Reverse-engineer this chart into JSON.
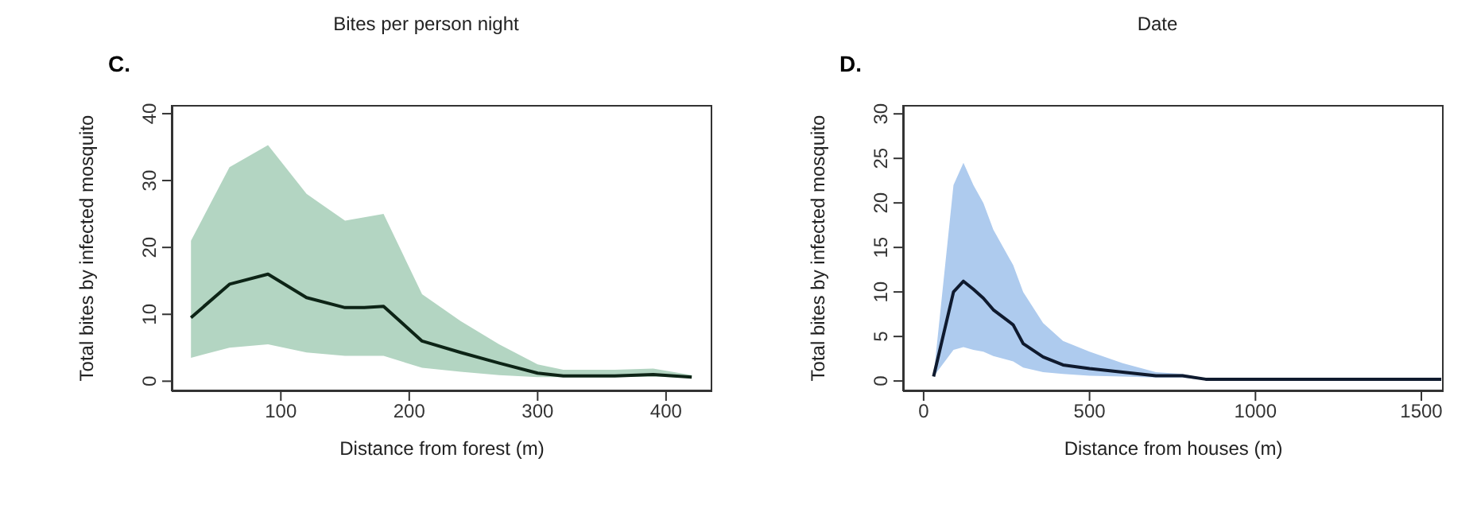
{
  "chart_data": [
    {
      "type": "line",
      "title": "C.",
      "annotations": [
        "Bites per person night"
      ],
      "xlabel": "Distance from forest (m)",
      "ylabel": "Total bites by infected mosquito",
      "xlim": [
        15,
        436
      ],
      "xticks": [
        100,
        200,
        300,
        400
      ],
      "ylim": [
        -1.5,
        41.3
      ],
      "yticks": [
        0,
        10,
        20,
        30,
        40
      ],
      "marker": "none",
      "line_style": "solid",
      "x": [
        30,
        60,
        90,
        120,
        150,
        165,
        180,
        210,
        240,
        270,
        300,
        320,
        360,
        390,
        420
      ],
      "series": [
        {
          "color": "#0d2416",
          "values": [
            9.5,
            14.5,
            16,
            12.5,
            11,
            11,
            11.2,
            6,
            4.3,
            2.7,
            1.2,
            0.8,
            0.8,
            1,
            0.6
          ],
          "lower": [
            3.5,
            5,
            5.5,
            4.3,
            3.8,
            3.8,
            3.8,
            2,
            1.4,
            0.9,
            0.6,
            0.6,
            0.6,
            0.7,
            0.5
          ],
          "upper": [
            21,
            32,
            35.3,
            28,
            24,
            24.5,
            25,
            13,
            9,
            5.5,
            2.5,
            1.7,
            1.7,
            1.9,
            0.9
          ]
        }
      ]
    },
    {
      "type": "line",
      "title": "D.",
      "annotations": [
        "Date"
      ],
      "xlabel": "Distance from houses (m)",
      "ylabel": "Total bites by infected mosquito",
      "xlim": [
        -62,
        1567
      ],
      "xticks": [
        0,
        500,
        1000,
        1500
      ],
      "ylim": [
        -1.15,
        31
      ],
      "yticks": [
        0,
        5,
        10,
        15,
        20,
        25,
        30
      ],
      "marker": "none",
      "line_style": "solid",
      "x": [
        30,
        90,
        120,
        150,
        180,
        210,
        270,
        300,
        360,
        420,
        500,
        600,
        700,
        780,
        850,
        1000,
        1560
      ],
      "series": [
        {
          "color": "#0f1a2e",
          "values": [
            0.5,
            10,
            11.2,
            10.3,
            9.3,
            8,
            6.3,
            4.2,
            2.7,
            1.8,
            1.4,
            1,
            0.6,
            0.6,
            0.2,
            0.2,
            0.2
          ],
          "lower": [
            0.5,
            3.5,
            3.8,
            3.5,
            3.3,
            2.8,
            2.2,
            1.5,
            1,
            0.8,
            0.6,
            0.5,
            0.4,
            0.4,
            0.1,
            0.2,
            0.2
          ],
          "upper": [
            0.5,
            22,
            24.5,
            22,
            20,
            17,
            13,
            10,
            6.5,
            4.5,
            3.3,
            2,
            1,
            0.8,
            0.3,
            0.2,
            0.2
          ]
        }
      ]
    }
  ]
}
